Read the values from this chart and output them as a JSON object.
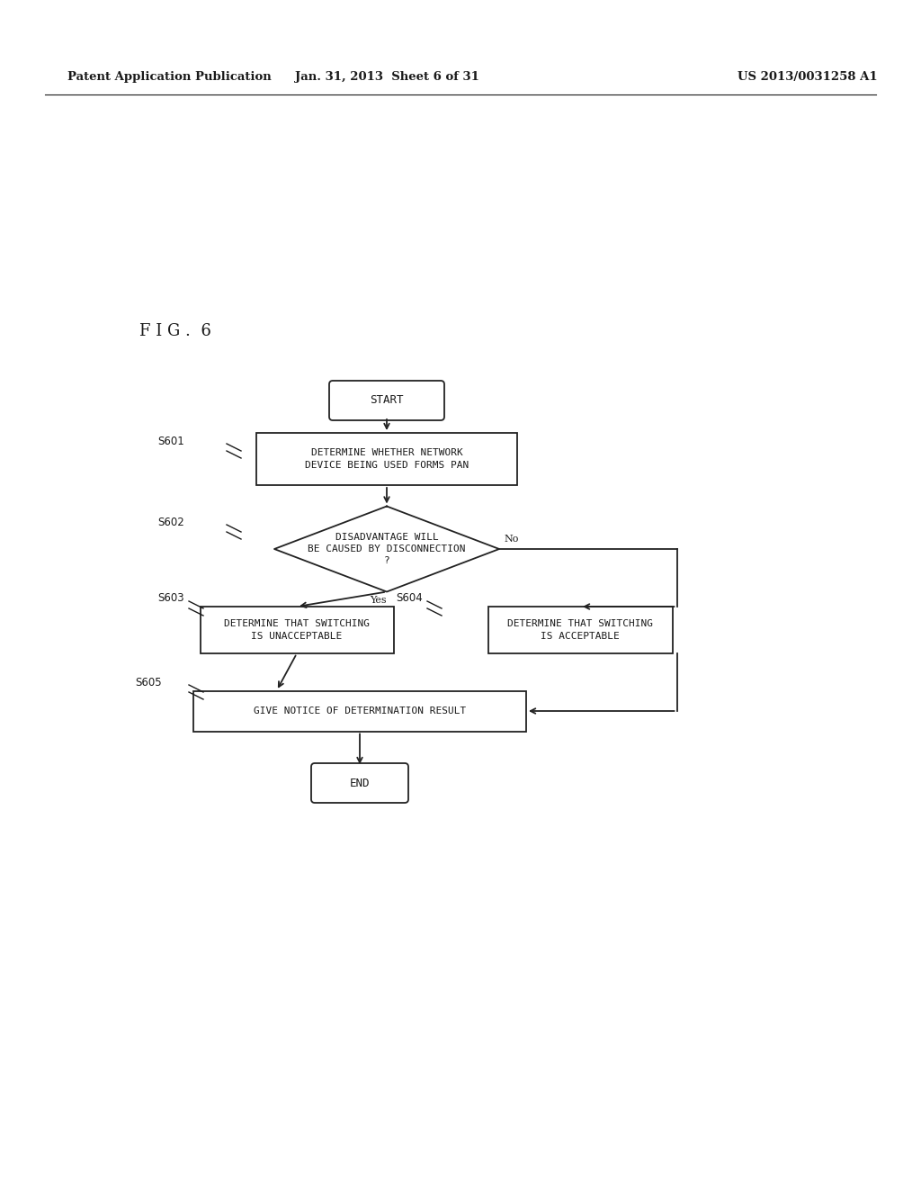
{
  "header_left": "Patent Application Publication",
  "header_center": "Jan. 31, 2013  Sheet 6 of 31",
  "header_right": "US 2013/0031258 A1",
  "fig_label": "F I G .  6",
  "background_color": "#ffffff",
  "text_color": "#1a1a1a",
  "box_edge_color": "#222222",
  "font_size_box": 8.0,
  "font_size_header": 9.5,
  "font_size_title": 13,
  "font_size_step": 8.5,
  "font_size_label": 8.5,
  "start_label": "START",
  "end_label": "END",
  "s601_label": "DETERMINE WHETHER NETWORK\nDEVICE BEING USED FORMS PAN",
  "s602_label": "DISADVANTAGE WILL\nBE CAUSED BY DISCONNECTION\n?",
  "s603_label": "DETERMINE THAT SWITCHING\nIS UNACCEPTABLE",
  "s604_label": "DETERMINE THAT SWITCHING\nIS ACCEPTABLE",
  "s605_label": "GIVE NOTICE OF DETERMINATION RESULT",
  "yes_label": "Yes",
  "no_label": "No",
  "step_s601": "S601",
  "step_s602": "S602",
  "step_s603": "S603",
  "step_s604": "S604",
  "step_s605": "S605"
}
